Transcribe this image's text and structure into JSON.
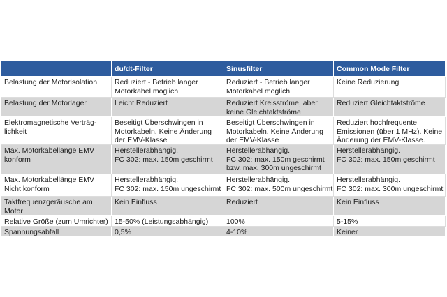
{
  "table": {
    "header": [
      "du/dt-Filter",
      "Sinusfilter",
      "Common Mode Filter"
    ],
    "rows": [
      {
        "label": [
          "Belastung der Motorisolation"
        ],
        "cells": [
          [
            "Reduziert - Betrieb langer",
            "Motorkabel möglich"
          ],
          [
            "Reduziert - Betrieb langer",
            "Motorkabel möglich"
          ],
          [
            "Keine Reduzierung"
          ]
        ]
      },
      {
        "label": [
          "Belastung der Motorlager"
        ],
        "cells": [
          [
            "Leicht Reduziert"
          ],
          [
            "Reduziert Kreisströme, aber",
            "keine Gleichtaktströme"
          ],
          [
            "Reduziert Gleichtaktströme"
          ]
        ]
      },
      {
        "label": [
          "Elektromagnetische Verträg-",
          "lichkeit"
        ],
        "cells": [
          [
            "Beseitigt Überschwingen in",
            "Motorkabeln. Keine Änderung",
            "der EMV-Klasse"
          ],
          [
            "Beseitigt Überschwingen in",
            "Motorkabeln. Keine Änderung",
            "der EMV-Klasse"
          ],
          [
            "Reduziert hochfrequente",
            "Emissionen (über 1 MHz). Keine",
            "Änderung der EMV-Klasse."
          ]
        ]
      },
      {
        "label": [
          "Max. Motorkabellänge EMV",
          "konform"
        ],
        "cells": [
          [
            "Herstellerabhängig.",
            "FC 302: max. 150m geschirmt"
          ],
          [
            "Herstellerabhängig.",
            "FC 302: max. 150m geschirmt",
            "bzw. max. 300m ungeschirmt"
          ],
          [
            "Herstellerabhängig.",
            "FC 302: max. 150m geschirmt"
          ]
        ]
      },
      {
        "label": [
          "Max. Motorkabellänge EMV",
          "Nicht konform"
        ],
        "cells": [
          [
            "Herstellerabhängig.",
            "FC 302: max. 150m ungeschirmt"
          ],
          [
            "Herstellerabhängig.",
            "FC 302: max. 500m ungeschirmt"
          ],
          [
            "Herstellerabhängig.",
            "FC 302: max. 300m ungeschirmt"
          ]
        ]
      },
      {
        "label": [
          "Taktfrequenzgeräusche am",
          "Motor"
        ],
        "cells": [
          [
            "Kein Einfluss"
          ],
          [
            "Reduziert"
          ],
          [
            "Kein Einfluss"
          ]
        ]
      },
      {
        "label": [
          "Relative Größe (zum Umrichter)"
        ],
        "cells": [
          [
            "15-50% (Leistungsabhängig)"
          ],
          [
            "100%"
          ],
          [
            "5-15%"
          ]
        ]
      },
      {
        "label": [
          "Spannungsabfall"
        ],
        "cells": [
          [
            "0,5%"
          ],
          [
            "4-10%"
          ],
          [
            "Keiner"
          ]
        ]
      }
    ]
  }
}
